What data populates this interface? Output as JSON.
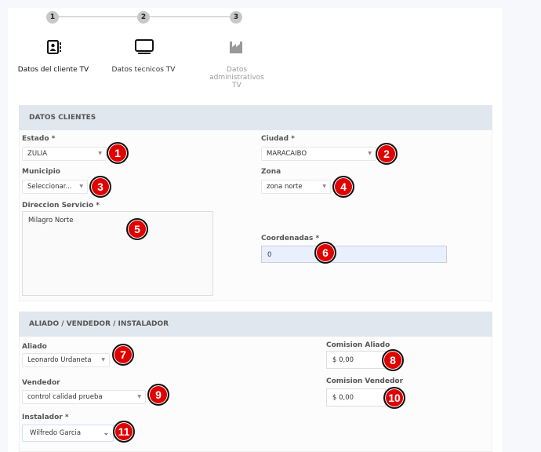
{
  "stepper": {
    "steps": [
      {
        "number": "1",
        "label": "Datos del cliente TV",
        "icon": "contact-book-icon",
        "active": true
      },
      {
        "number": "2",
        "label": "Datos tecnicos TV",
        "icon": "monitor-icon",
        "active": true
      },
      {
        "number": "3",
        "label": "Datos administrativos TV",
        "icon": "factory-icon",
        "active": false
      }
    ]
  },
  "clientes": {
    "title": "DATOS CLIENTES",
    "estado": {
      "label": "Estado *",
      "value": "ZULIA"
    },
    "ciudad": {
      "label": "Ciudad *",
      "value": "MARACAIBO"
    },
    "municipio": {
      "label": "Municipio",
      "value": "Seleccionar..."
    },
    "zona": {
      "label": "Zona",
      "value": "zona norte"
    },
    "direccion": {
      "label": "Direccion Servicio *",
      "value": "Milagro Norte"
    },
    "coordenadas": {
      "label": "Coordenadas *",
      "value": "0"
    }
  },
  "aliado_section": {
    "title": "ALIADO / VENDEDOR / INSTALADOR",
    "aliado": {
      "label": "Aliado",
      "value": "Leonardo Urdaneta"
    },
    "comision_aliado": {
      "label": "Comision Aliado",
      "value": "$ 0,00"
    },
    "vendedor": {
      "label": "Vendedor",
      "value": "control calidad prueba"
    },
    "comision_vendedor": {
      "label": "Comision Vendedor",
      "value": "$ 0,00"
    },
    "instalador": {
      "label": "Instalador *",
      "value": "Wilfredo Garcia"
    }
  },
  "badges": [
    "1",
    "2",
    "3",
    "4",
    "5",
    "6",
    "7",
    "8",
    "9",
    "10",
    "11"
  ],
  "colors": {
    "badge": "#e00000",
    "section_header": "#e1e7ee",
    "coordenadas_bg": "#e8f0fe"
  }
}
